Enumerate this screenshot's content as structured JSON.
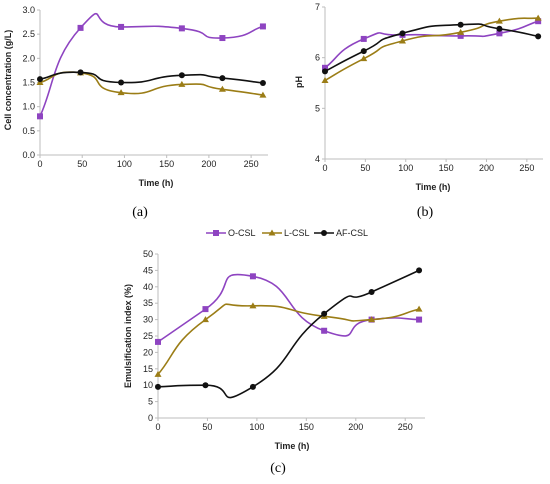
{
  "legend": [
    "O-CSL",
    "L-CSL",
    "AF-CSL"
  ],
  "colors": {
    "O-CSL": "#8e44c1",
    "L-CSL": "#9b7d16",
    "AF-CSL": "#111111"
  },
  "chart_data": [
    {
      "type": "line",
      "panel_label": "(a)",
      "xlabel": "Time (h)",
      "ylabel": "Cell concentration (g/L)",
      "x": [
        0,
        48,
        96,
        168,
        216,
        264
      ],
      "xlim": [
        0,
        270
      ],
      "xticks": [
        0,
        50,
        100,
        150,
        200,
        250
      ],
      "ylim": [
        0,
        3.0
      ],
      "yticks": [
        "0.0",
        "0.5",
        "1.0",
        "1.5",
        "2.0",
        "2.5",
        "3.0"
      ],
      "series": [
        {
          "name": "O-CSL",
          "marker": "square",
          "values": [
            0.8,
            2.63,
            2.65,
            2.62,
            2.42,
            2.66
          ]
        },
        {
          "name": "L-CSL",
          "marker": "triangle",
          "values": [
            1.5,
            1.7,
            1.29,
            1.46,
            1.36,
            1.24
          ]
        },
        {
          "name": "AF-CSL",
          "marker": "circle",
          "values": [
            1.57,
            1.71,
            1.5,
            1.65,
            1.59,
            1.49
          ]
        }
      ]
    },
    {
      "type": "line",
      "panel_label": "(b)",
      "xlabel": "Time (h)",
      "ylabel": "pH",
      "x": [
        0,
        48,
        96,
        168,
        216,
        264
      ],
      "xlim": [
        0,
        270
      ],
      "xticks": [
        0,
        50,
        100,
        150,
        200,
        250
      ],
      "ylim": [
        4,
        7
      ],
      "yticks": [
        "4",
        "5",
        "6",
        "7"
      ],
      "series": [
        {
          "name": "O-CSL",
          "marker": "square",
          "values": [
            5.8,
            6.37,
            6.45,
            6.43,
            6.48,
            6.72
          ]
        },
        {
          "name": "L-CSL",
          "marker": "triangle",
          "values": [
            5.55,
            5.98,
            6.33,
            6.5,
            6.72,
            6.78
          ]
        },
        {
          "name": "AF-CSL",
          "marker": "circle",
          "values": [
            5.73,
            6.13,
            6.48,
            6.65,
            6.57,
            6.42
          ]
        }
      ]
    },
    {
      "type": "line",
      "panel_label": "(c)",
      "xlabel": "Time (h)",
      "ylabel": "Emulsification index (%)",
      "x": [
        0,
        48,
        96,
        168,
        216,
        264
      ],
      "xlim": [
        0,
        270
      ],
      "xticks": [
        0,
        50,
        100,
        150,
        200,
        250
      ],
      "ylim": [
        0,
        50
      ],
      "yticks": [
        "0",
        "5",
        "10",
        "15",
        "20",
        "25",
        "30",
        "35",
        "40",
        "45",
        "50"
      ],
      "series": [
        {
          "name": "O-CSL",
          "marker": "square",
          "values": [
            23.2,
            33.2,
            43.2,
            26.6,
            30.0,
            30.0
          ]
        },
        {
          "name": "L-CSL",
          "marker": "triangle",
          "values": [
            13.3,
            30.0,
            34.2,
            31.0,
            30.0,
            33.2
          ]
        },
        {
          "name": "AF-CSL",
          "marker": "circle",
          "values": [
            9.5,
            10.0,
            9.5,
            31.8,
            38.4,
            45.0
          ]
        }
      ]
    }
  ]
}
